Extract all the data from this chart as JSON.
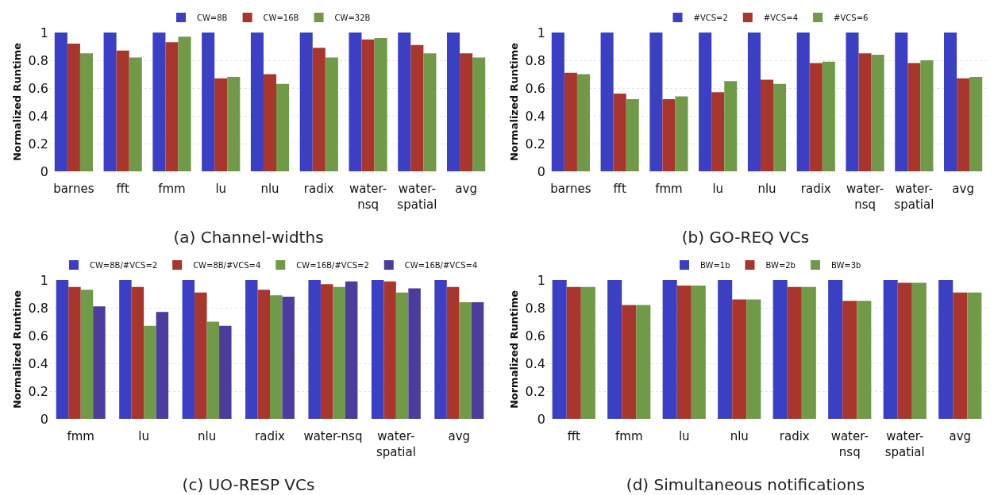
{
  "chart_data": [
    {
      "type": "bar",
      "title": "(a) Channel-widths",
      "ylabel": "Normalized Runtime",
      "categories": [
        "barnes",
        "fft",
        "fmm",
        "lu",
        "nlu",
        "radix",
        "water-\nnsq",
        "water-\nspatial",
        "avg"
      ],
      "ylim": [
        0,
        1
      ],
      "yticks": [
        0,
        0.2,
        0.4,
        0.6,
        0.8,
        1
      ],
      "grid": "y",
      "legend": "top",
      "series": [
        {
          "name": "CW=8B",
          "color": "#3a3fc4",
          "values": [
            1,
            1,
            1,
            1,
            1,
            1,
            1,
            1,
            1
          ]
        },
        {
          "name": "CW=16B",
          "color": "#a8362c",
          "values": [
            0.92,
            0.87,
            0.93,
            0.67,
            0.7,
            0.89,
            0.95,
            0.91,
            0.85
          ]
        },
        {
          "name": "CW=32B",
          "color": "#709a48",
          "values": [
            0.85,
            0.82,
            0.97,
            0.68,
            0.63,
            0.82,
            0.96,
            0.85,
            0.82
          ]
        }
      ]
    },
    {
      "type": "bar",
      "title": "(b) GO-REQ VCs",
      "ylabel": "Normalized Runtime",
      "categories": [
        "barnes",
        "fft",
        "fmm",
        "lu",
        "nlu",
        "radix",
        "water-\nnsq",
        "water-\nspatial",
        "avg"
      ],
      "ylim": [
        0,
        1
      ],
      "yticks": [
        0,
        0.2,
        0.4,
        0.6,
        0.8,
        1
      ],
      "grid": "y",
      "legend": "top",
      "series": [
        {
          "name": "#VCS=2",
          "color": "#3a3fc4",
          "values": [
            1,
            1,
            1,
            1,
            1,
            1,
            1,
            1,
            1
          ]
        },
        {
          "name": "#VCS=4",
          "color": "#a8362c",
          "values": [
            0.71,
            0.56,
            0.52,
            0.57,
            0.66,
            0.78,
            0.85,
            0.78,
            0.67
          ]
        },
        {
          "name": "#VCS=6",
          "color": "#709a48",
          "values": [
            0.7,
            0.52,
            0.54,
            0.65,
            0.63,
            0.79,
            0.84,
            0.8,
            0.68
          ]
        }
      ]
    },
    {
      "type": "bar",
      "title": "(c) UO-RESP VCs",
      "ylabel": "Normalized Runtime",
      "categories": [
        "fmm",
        "lu",
        "nlu",
        "radix",
        "water-nsq",
        "water-\nspatial",
        "avg"
      ],
      "ylim": [
        0,
        1
      ],
      "yticks": [
        0,
        0.2,
        0.4,
        0.6,
        0.8,
        1
      ],
      "grid": "y",
      "legend": "top",
      "series": [
        {
          "name": "CW=8B/#VCS=2",
          "color": "#3a3fc4",
          "values": [
            1,
            1,
            1,
            1,
            1,
            1,
            1
          ]
        },
        {
          "name": "CW=8B/#VCS=4",
          "color": "#a8362c",
          "values": [
            0.95,
            0.95,
            0.91,
            0.93,
            0.97,
            0.99,
            0.95
          ]
        },
        {
          "name": "CW=16B/#VCS=2",
          "color": "#709a48",
          "values": [
            0.93,
            0.67,
            0.7,
            0.89,
            0.95,
            0.91,
            0.84
          ]
        },
        {
          "name": "CW=16B/#VCS=4",
          "color": "#4b3c9e",
          "values": [
            0.81,
            0.77,
            0.67,
            0.88,
            0.99,
            0.94,
            0.84
          ]
        }
      ]
    },
    {
      "type": "bar",
      "title": "(d) Simultaneous notifications",
      "ylabel": "Normalized Runtime",
      "categories": [
        "fft",
        "fmm",
        "lu",
        "nlu",
        "radix",
        "water-\nnsq",
        "water-\nspatial",
        "avg"
      ],
      "ylim": [
        0,
        1
      ],
      "yticks": [
        0,
        0.2,
        0.4,
        0.6,
        0.8,
        1
      ],
      "grid": "y",
      "legend": "top",
      "series": [
        {
          "name": "BW=1b",
          "color": "#3a3fc4",
          "values": [
            1,
            1,
            1,
            1,
            1,
            1,
            1,
            1
          ]
        },
        {
          "name": "BW=2b",
          "color": "#a8362c",
          "values": [
            0.95,
            0.82,
            0.96,
            0.86,
            0.95,
            0.85,
            0.98,
            0.91
          ]
        },
        {
          "name": "BW=3b",
          "color": "#709a48",
          "values": [
            0.95,
            0.82,
            0.96,
            0.86,
            0.95,
            0.85,
            0.98,
            0.91
          ]
        }
      ]
    }
  ]
}
